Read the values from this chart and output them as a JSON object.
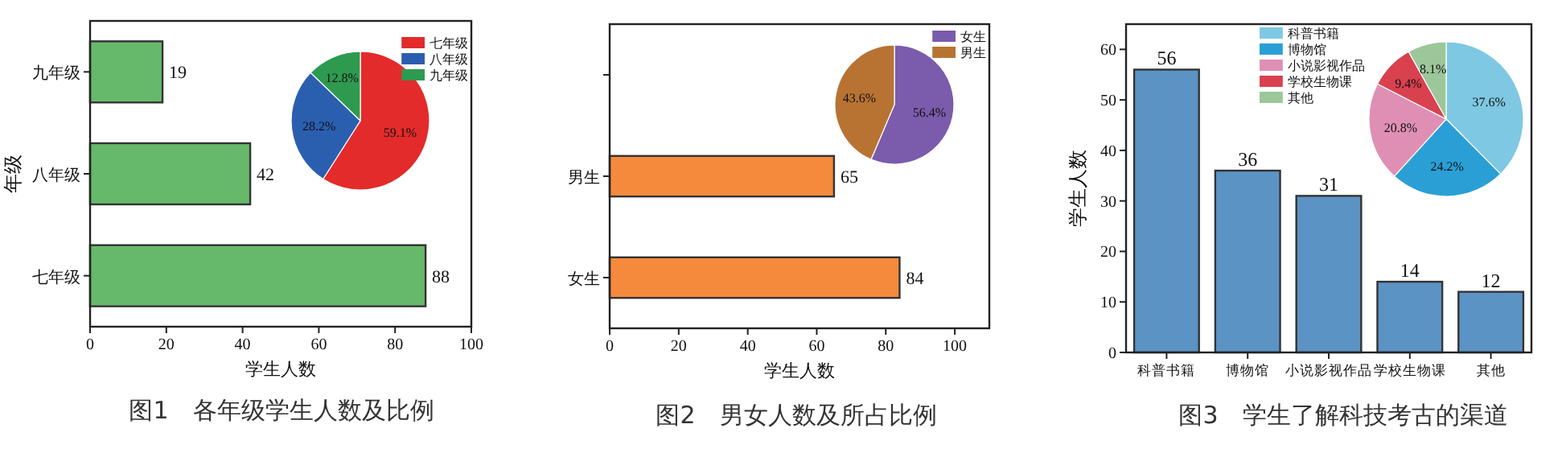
{
  "chart_data": [
    {
      "type": "bar",
      "orientation": "horizontal",
      "categories": [
        "九年级",
        "八年级",
        "七年级"
      ],
      "values": [
        19,
        42,
        88
      ],
      "color": "#66b96a",
      "xlim": [
        0,
        100
      ],
      "xticks": [
        0,
        20,
        40,
        60,
        80,
        100
      ],
      "xlabel": "学生人数",
      "ylabel": "年级",
      "data_labels": true,
      "annotations": [
        "图1　各年级学生人数及比例"
      ]
    },
    {
      "type": "pie",
      "categories": [
        "七年级",
        "八年级",
        "九年级"
      ],
      "values": [
        59.1,
        28.2,
        12.8
      ],
      "colors": [
        "#e32b2b",
        "#2a5fb0",
        "#2e9a50"
      ],
      "value_labels": [
        "59.1%",
        "28.2%",
        "12.8%"
      ],
      "legend": "top right"
    },
    {
      "type": "bar",
      "orientation": "horizontal",
      "categories": [
        null,
        "男生",
        "女生"
      ],
      "values": [
        null,
        65,
        84
      ],
      "color": "#f58a3c",
      "xlim": [
        0,
        110
      ],
      "xticks": [
        0,
        20,
        40,
        60,
        80,
        100
      ],
      "xlabel": "学生人数",
      "data_labels": true,
      "annotations": [
        "图2　男女人数及所占比例"
      ]
    },
    {
      "type": "pie",
      "categories": [
        "女生",
        "男生"
      ],
      "values": [
        56.4,
        43.6
      ],
      "colors": [
        "#7b5bab",
        "#b87333"
      ],
      "value_labels": [
        "56.4%",
        "43.6%"
      ],
      "legend": "top right"
    },
    {
      "type": "bar",
      "categories": [
        "科普书籍",
        "博物馆",
        "小说影视作品",
        "学校生物课",
        "其他"
      ],
      "values": [
        56,
        36,
        31,
        14,
        12
      ],
      "color": "#5b93c4",
      "ylim": [
        0,
        65
      ],
      "yticks": [
        0,
        10,
        20,
        30,
        40,
        50,
        60
      ],
      "ylabel": "学生人数",
      "data_labels": true,
      "annotations": [
        "图3　学生了解科技考古的渠道"
      ]
    },
    {
      "type": "pie",
      "categories": [
        "科普书籍",
        "博物馆",
        "小说影视作品",
        "学校生物课",
        "其他"
      ],
      "values": [
        37.6,
        24.2,
        20.8,
        9.4,
        8.1
      ],
      "colors": [
        "#7ec8e3",
        "#2a9fd6",
        "#e08fb4",
        "#d9414f",
        "#9cc79a"
      ],
      "value_labels": [
        "37.6%",
        "24.2%",
        "20.8%",
        "9.4%",
        "8.1%"
      ],
      "legend": "top left"
    }
  ]
}
